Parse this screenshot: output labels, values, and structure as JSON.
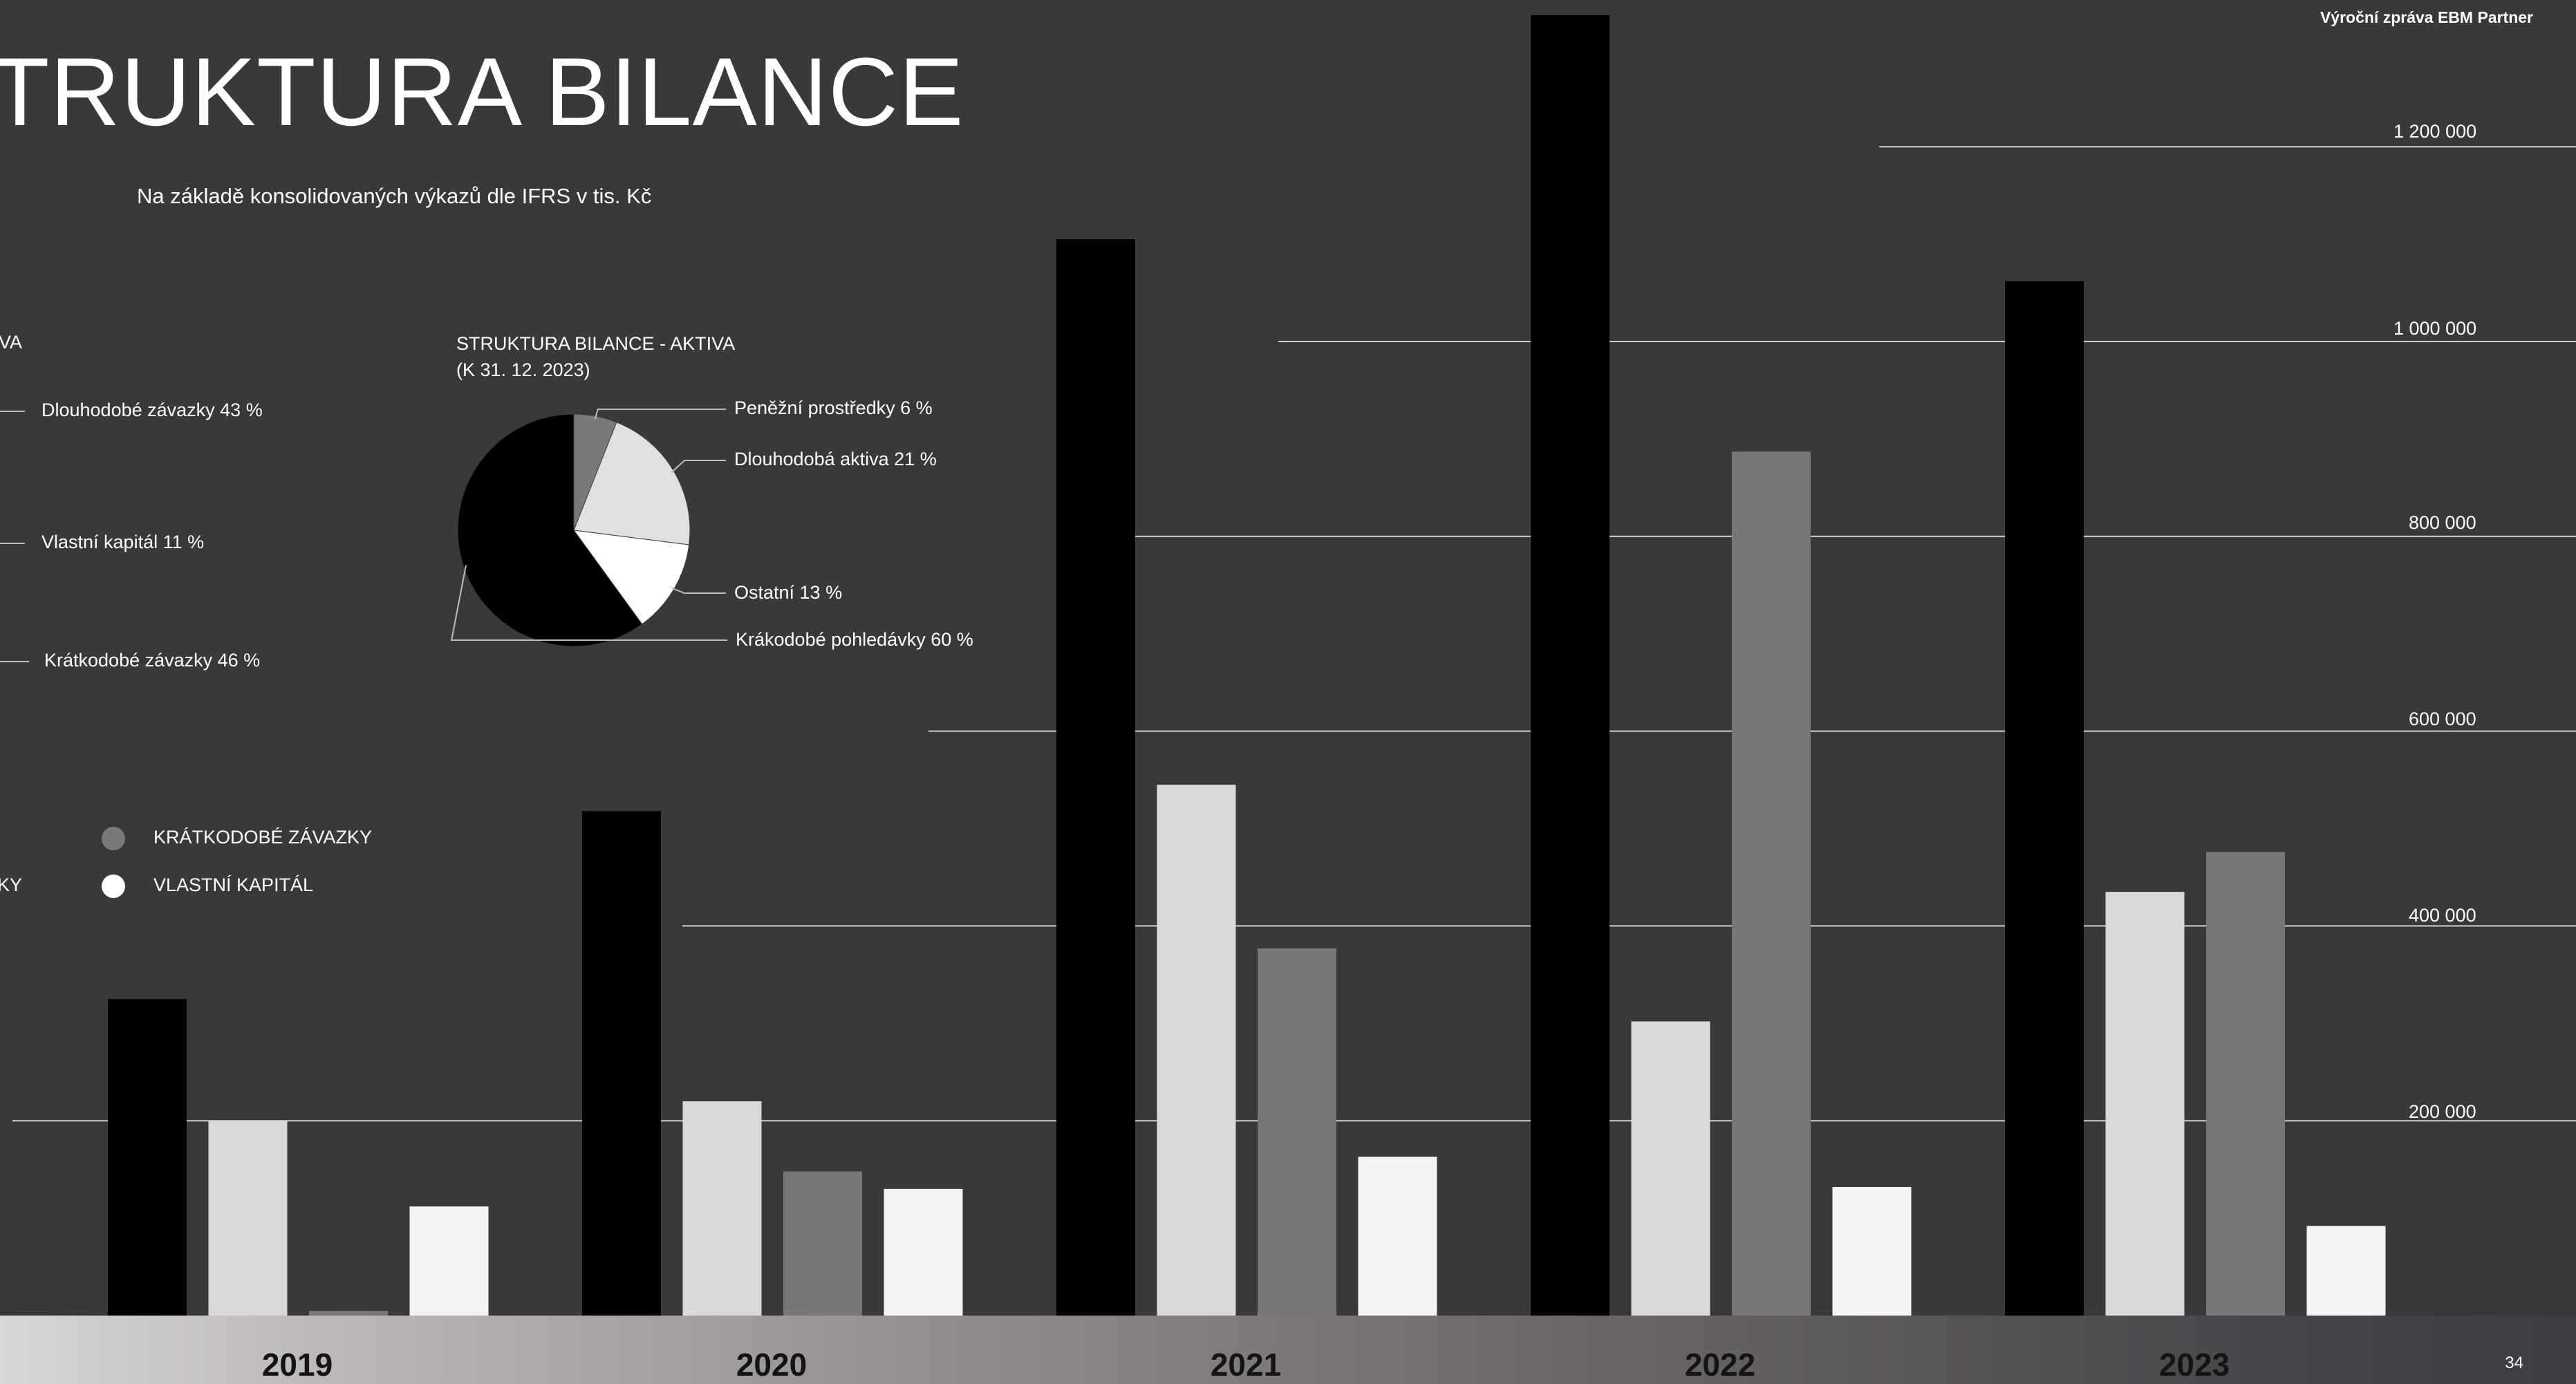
{
  "header": {
    "report_label": "Výroční zpráva EBM Partner",
    "page_number": "34"
  },
  "page": {
    "title": "TRUKTURA BILANCE",
    "subtitle": "Na základě konsolidovaných výkazů dle IFRS v tis. Kč"
  },
  "left_legend": {
    "heading": "VA",
    "items": [
      "Dlouhodobé závazky 43 %",
      "Vlastní kapitál 11 %",
      "Krátkodobé závazky 46 %"
    ]
  },
  "series_legend": {
    "cut_label": "KY",
    "items": [
      {
        "label": "KRÁTKODOBÉ ZÁVAZKY",
        "color": "#7a797c"
      },
      {
        "label": "VLASTNÍ KAPITÁL",
        "color": "#ffffff"
      }
    ]
  },
  "colors": {
    "background": "#3a383b",
    "bar_black": "#000000",
    "bar_light": "#d9d9d9",
    "bar_grey": "#777679",
    "bar_white": "#f4f4f4"
  },
  "chart_data": [
    {
      "type": "pie",
      "title": "STRUKTURA BILANCE - AKTIVA\n(K 31. 12. 2023)",
      "slices": [
        {
          "label": "Peněžní prostředky 6 %",
          "value": 6,
          "color": "#7a797c"
        },
        {
          "label": "Dlouhodobá aktiva 21 %",
          "value": 21,
          "color": "#e0e0e0"
        },
        {
          "label": "Ostatní 13 %",
          "value": 13,
          "color": "#ffffff"
        },
        {
          "label": "Krákodobé pohledávky 60 %",
          "value": 60,
          "color": "#000000"
        }
      ]
    },
    {
      "type": "bar",
      "categories": [
        "2019",
        "2020",
        "2021",
        "2022",
        "2023"
      ],
      "series": [
        {
          "values": [
            325000,
            518000,
            1105000,
            1335000,
            1062000
          ],
          "color": "#000000"
        },
        {
          "values": [
            200000,
            220000,
            545000,
            302000,
            435000
          ],
          "color": "#d9d9d9"
        },
        {
          "values": [
            5000,
            148000,
            377000,
            887000,
            476000
          ],
          "color": "#777679"
        },
        {
          "values": [
            112000,
            130000,
            163000,
            132000,
            92000
          ],
          "color": "#f4f4f4"
        }
      ],
      "yticks": [
        "200 000",
        "400 000",
        "600 000",
        "800 000",
        "1 000 000",
        "1 200 000"
      ],
      "ytick_values": [
        200000,
        400000,
        600000,
        800000,
        1000000,
        1200000
      ],
      "ylim": [
        0,
        1340000
      ],
      "grid": true
    }
  ]
}
